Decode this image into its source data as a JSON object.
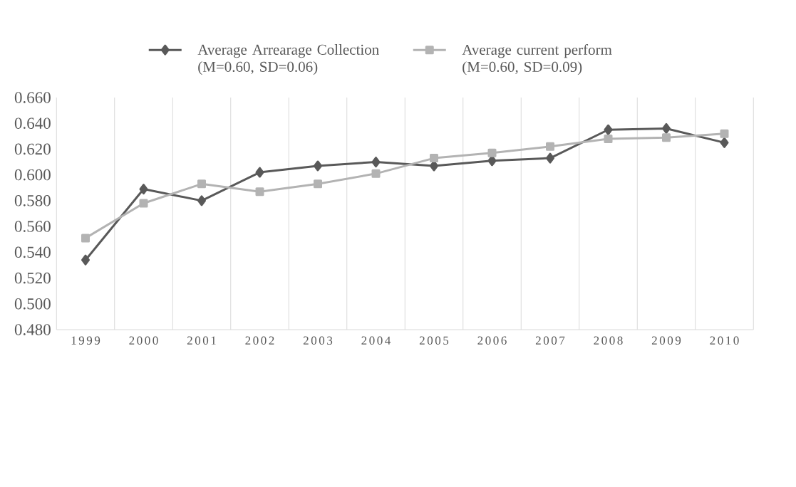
{
  "chart_data": {
    "type": "line",
    "categories": [
      "1999",
      "2000",
      "2001",
      "2002",
      "2003",
      "2004",
      "2005",
      "2006",
      "2007",
      "2008",
      "2009",
      "2010"
    ],
    "series": [
      {
        "name": "Average Arrearage Collection (M=0.60, SD=0.06)",
        "color": "#595959",
        "marker": "diamond",
        "values": [
          0.534,
          0.589,
          0.58,
          0.602,
          0.607,
          0.61,
          0.607,
          0.611,
          0.613,
          0.635,
          0.636,
          0.625
        ]
      },
      {
        "name": "Average current perform (M=0.60, SD=0.09)",
        "color": "#b3b3b3",
        "marker": "square",
        "values": [
          0.551,
          0.578,
          0.593,
          0.587,
          0.593,
          0.601,
          0.613,
          0.617,
          0.622,
          0.628,
          0.629,
          0.632
        ]
      }
    ],
    "ylim": [
      0.48,
      0.66
    ],
    "yticks": [
      {
        "value": 0.48,
        "label": "0.480"
      },
      {
        "value": 0.5,
        "label": "0.500"
      },
      {
        "value": 0.52,
        "label": "0.520"
      },
      {
        "value": 0.54,
        "label": "0.540"
      },
      {
        "value": 0.56,
        "label": "0.560"
      },
      {
        "value": 0.58,
        "label": "0.580"
      },
      {
        "value": 0.6,
        "label": "0.600"
      },
      {
        "value": 0.62,
        "label": "0.620"
      },
      {
        "value": 0.64,
        "label": "0.640"
      },
      {
        "value": 0.66,
        "label": "0.660"
      }
    ],
    "grid": "x",
    "legend": "top"
  }
}
